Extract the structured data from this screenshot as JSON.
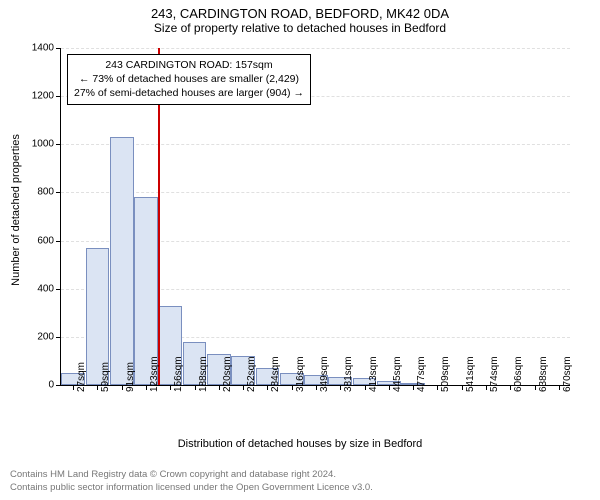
{
  "header": {
    "title": "243, CARDINGTON ROAD, BEDFORD, MK42 0DA",
    "subtitle": "Size of property relative to detached houses in Bedford"
  },
  "chart": {
    "type": "histogram",
    "y_axis_title": "Number of detached properties",
    "x_axis_title": "Distribution of detached houses by size in Bedford",
    "ylim_max": 1400,
    "ytick_step": 200,
    "yticks": [
      0,
      200,
      400,
      600,
      800,
      1000,
      1200,
      1400
    ],
    "bar_fill": "#dbe4f3",
    "bar_border": "#7a8fbf",
    "grid_color": "#e0e0e0",
    "background": "#ffffff",
    "categories": [
      "27sqm",
      "59sqm",
      "91sqm",
      "123sqm",
      "156sqm",
      "188sqm",
      "220sqm",
      "252sqm",
      "284sqm",
      "316sqm",
      "349sqm",
      "381sqm",
      "413sqm",
      "445sqm",
      "477sqm",
      "509sqm",
      "541sqm",
      "574sqm",
      "606sqm",
      "638sqm",
      "670sqm"
    ],
    "values": [
      50,
      570,
      1030,
      780,
      330,
      180,
      130,
      120,
      70,
      50,
      40,
      35,
      30,
      15,
      10,
      0,
      0,
      0,
      0,
      0,
      0
    ],
    "reference": {
      "index_after": 4,
      "color": "#cc0000"
    },
    "annotation": {
      "line1": "243 CARDINGTON ROAD: 157sqm",
      "line2": "← 73% of detached houses are smaller (2,429)",
      "line3": "27% of semi-detached houses are larger (904) →"
    }
  },
  "footer": {
    "line1": "Contains HM Land Registry data © Crown copyright and database right 2024.",
    "line2": "Contains public sector information licensed under the Open Government Licence v3.0."
  }
}
